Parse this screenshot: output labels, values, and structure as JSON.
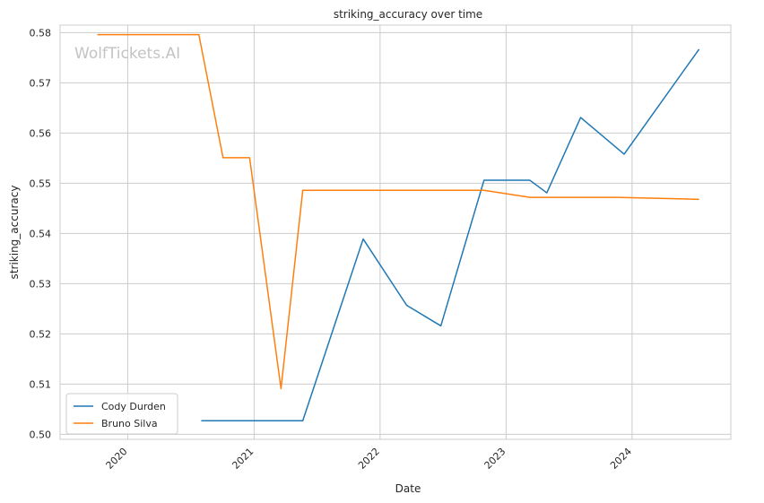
{
  "chart_data": {
    "type": "line",
    "title": "striking_accuracy over time",
    "xlabel": "Date",
    "ylabel": "striking_accuracy",
    "watermark": "WolfTickets.AI",
    "xlim": [
      "2019-06-19",
      "2024-10-13"
    ],
    "ylim": [
      0.499,
      0.5815
    ],
    "x_ticks": [
      "2020",
      "2021",
      "2022",
      "2023",
      "2024"
    ],
    "y_ticks": [
      "0.50",
      "0.51",
      "0.52",
      "0.53",
      "0.54",
      "0.55",
      "0.56",
      "0.57",
      "0.58"
    ],
    "grid": true,
    "legend_position": "lower-left",
    "series": [
      {
        "name": "Cody Durden",
        "color": "#1f77b4",
        "points": [
          {
            "x": "2020-08-01",
            "y": 0.5027
          },
          {
            "x": "2021-05-22",
            "y": 0.5027
          },
          {
            "x": "2021-11-13",
            "y": 0.5389
          },
          {
            "x": "2022-03-19",
            "y": 0.5257
          },
          {
            "x": "2022-06-26",
            "y": 0.5216
          },
          {
            "x": "2022-10-29",
            "y": 0.5506
          },
          {
            "x": "2023-03-11",
            "y": 0.5506
          },
          {
            "x": "2023-04-29",
            "y": 0.5481
          },
          {
            "x": "2023-08-05",
            "y": 0.5631
          },
          {
            "x": "2023-12-09",
            "y": 0.5558
          },
          {
            "x": "2024-07-13",
            "y": 0.5767
          }
        ]
      },
      {
        "name": "Bruno Silva",
        "color": "#ff7f0e",
        "points": [
          {
            "x": "2019-10-05",
            "y": 0.5796
          },
          {
            "x": "2020-07-25",
            "y": 0.5796
          },
          {
            "x": "2020-10-03",
            "y": 0.5551
          },
          {
            "x": "2020-12-19",
            "y": 0.5551
          },
          {
            "x": "2021-03-20",
            "y": 0.5091
          },
          {
            "x": "2021-05-22",
            "y": 0.5486
          },
          {
            "x": "2022-10-29",
            "y": 0.5486
          },
          {
            "x": "2023-03-11",
            "y": 0.5472
          },
          {
            "x": "2023-11-18",
            "y": 0.5472
          },
          {
            "x": "2024-07-13",
            "y": 0.5468
          }
        ]
      }
    ]
  }
}
